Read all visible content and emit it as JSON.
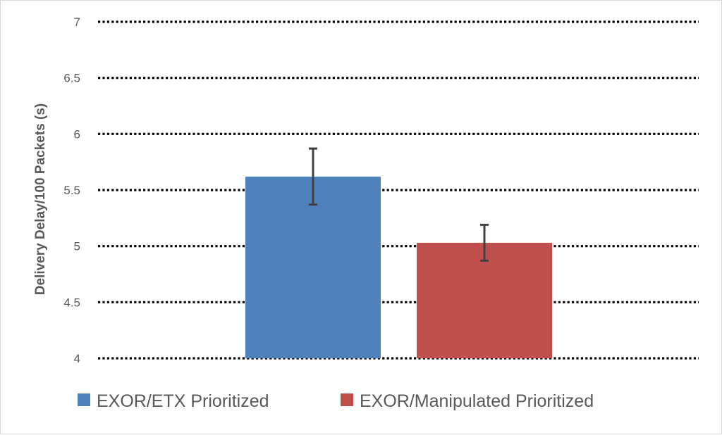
{
  "chart_data": {
    "type": "bar",
    "title": "",
    "xlabel": "",
    "ylabel": "Delivery Delay/100 Packets (s)",
    "ylim": [
      4,
      7
    ],
    "yticks": [
      "4",
      "4.5",
      "5",
      "5.5",
      "6",
      "6.5",
      "7"
    ],
    "grid": true,
    "grid_style": "dotted",
    "legend_position": "bottom",
    "series": [
      {
        "name": "EXOR/ETX Prioritized",
        "value": 5.62,
        "error": 0.25,
        "color": "#4f81bd"
      },
      {
        "name": "EXOR/Manipulated Prioritized",
        "value": 5.03,
        "error": 0.16,
        "color": "#c0504d"
      }
    ]
  }
}
